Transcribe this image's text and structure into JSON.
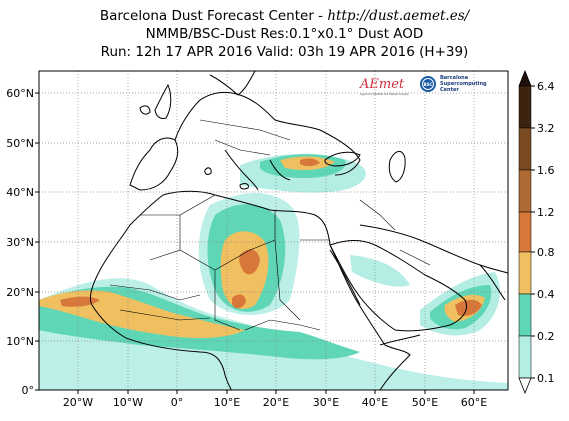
{
  "header": {
    "line1_prefix": "Barcelona Dust Forecast Center - ",
    "line1_url": "http://dust.aemet.es/",
    "line2": "NMMB/BSC-Dust   Res:0.1°x0.1°   Dust AOD",
    "line3": "Run: 12h 17 APR 2016   Valid: 03h 19 APR 2016 (H+39)"
  },
  "logos": {
    "aemet_text": "AEmet",
    "aemet_subtitle": "Agencia Estatal de Meteorología",
    "bsc_badge": "BSC",
    "bsc_line1": "Barcelona",
    "bsc_line2": "Supercomputing",
    "bsc_line3": "Center"
  },
  "axes": {
    "lat_labels": [
      "60°N",
      "50°N",
      "40°N",
      "30°N",
      "20°N",
      "10°N",
      "0°"
    ],
    "lon_labels": [
      "20°W",
      "10°W",
      "0°",
      "10°E",
      "20°E",
      "30°E",
      "40°E",
      "50°E",
      "60°E"
    ],
    "lon_range": [
      -28,
      67
    ],
    "lat_range": [
      0,
      65
    ]
  },
  "colorbar": {
    "labels": [
      "6.4",
      "3.2",
      "1.6",
      "1.2",
      "0.8",
      "0.4",
      "0.2",
      "0.1"
    ],
    "colors": [
      "#3d2410",
      "#7a4a22",
      "#b06a33",
      "#d8773a",
      "#f0c060",
      "#5fd6b6",
      "#b4ede4"
    ]
  },
  "colors": {
    "ocean": "#ffffff",
    "coast": "#000000",
    "grid": "#888888"
  }
}
